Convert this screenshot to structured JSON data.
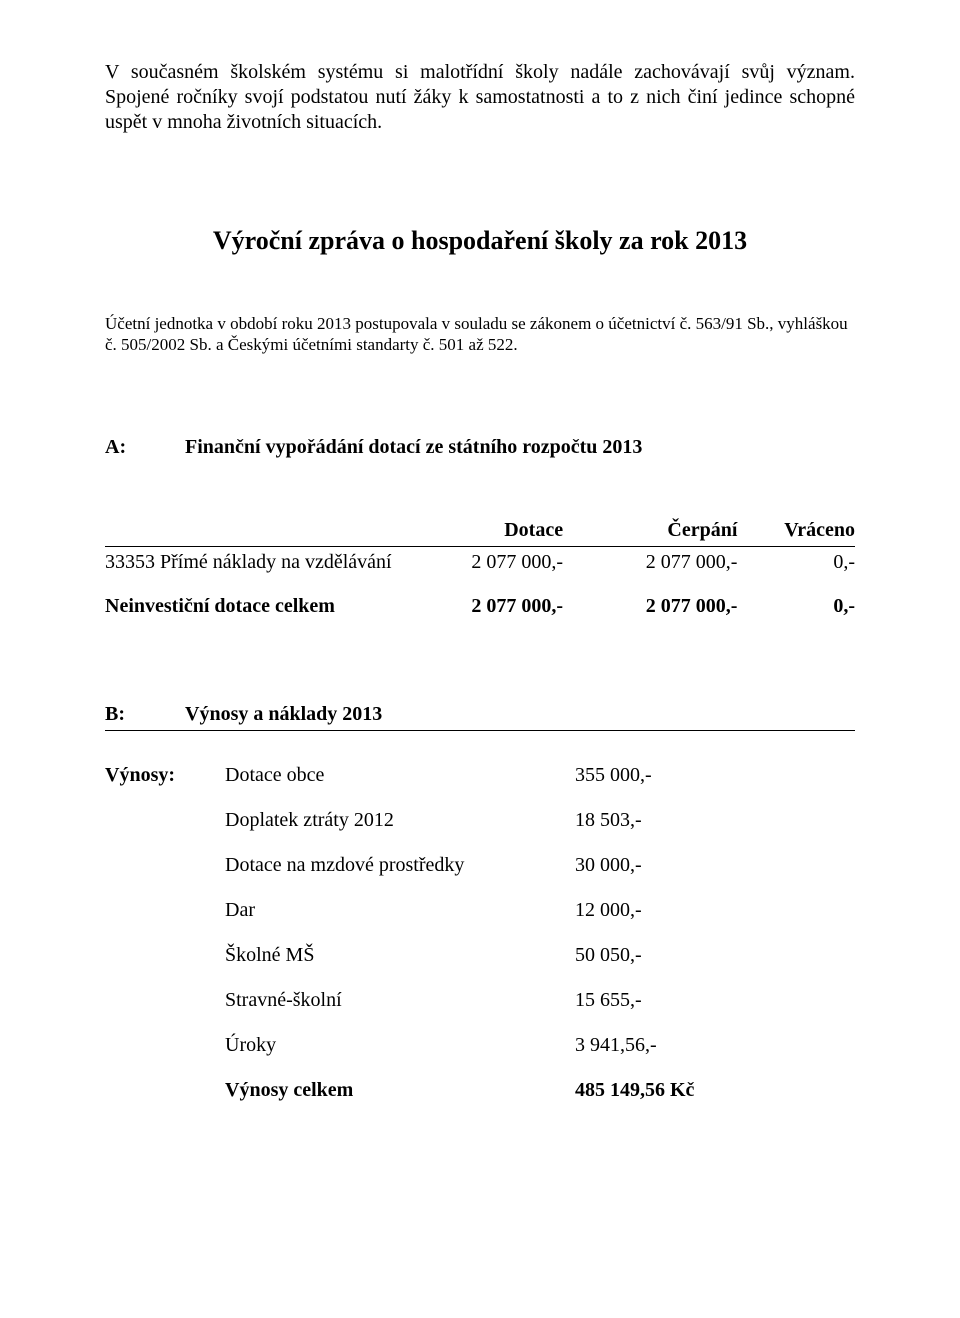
{
  "intro": "V současném školském systému si malotřídní školy nadále zachovávají svůj význam. Spojené ročníky svojí podstatou nutí žáky k samostatnosti a to z nich činí jedince schopné uspět v mnoha životních situacích.",
  "title": "Výroční zpráva o hospodaření školy za rok 2013",
  "note": "Účetní jednotka v období roku 2013 postupovala v souladu se zákonem o účetnictví č. 563/91 Sb., vyhláškou č. 505/2002 Sb. a Českými účetními standarty č. 501 až 522.",
  "sectionA": {
    "label": "A:",
    "heading": "Finanční vypořádání dotací ze státního rozpočtu 2013",
    "headers": {
      "c1": "Dotace",
      "c2": "Čerpání",
      "c3": "Vráceno"
    },
    "row1": {
      "item": "33353  Přímé náklady na vzdělávání",
      "dotace": "2 077 000,-",
      "cerp": "2 077  000,-",
      "vrac": "0,-"
    },
    "row2": {
      "item": "Neinvestiční dotace celkem",
      "dotace": "2 077  000,-",
      "cerp": "2 077  000,-",
      "vrac": "0,-"
    }
  },
  "sectionB": {
    "label": "B:",
    "heading": "Výnosy a náklady 2013"
  },
  "vynosy": {
    "label": "Výnosy:",
    "rows": [
      {
        "item": "Dotace obce",
        "val": "355 000,-"
      },
      {
        "item": "Doplatek ztráty 2012",
        "val": "18 503,-"
      },
      {
        "item": "Dotace na mzdové prostředky",
        "val": "30 000,-"
      },
      {
        "item": "Dar",
        "val": "12 000,-"
      },
      {
        "item": "Školné MŠ",
        "val": "50 050,-"
      },
      {
        "item": "Stravné-školní",
        "val": "15 655,-"
      },
      {
        "item": "Úroky",
        "val": "3 941,56,-"
      }
    ],
    "total": {
      "item": "Výnosy celkem",
      "val": "485 149,56 Kč"
    }
  }
}
